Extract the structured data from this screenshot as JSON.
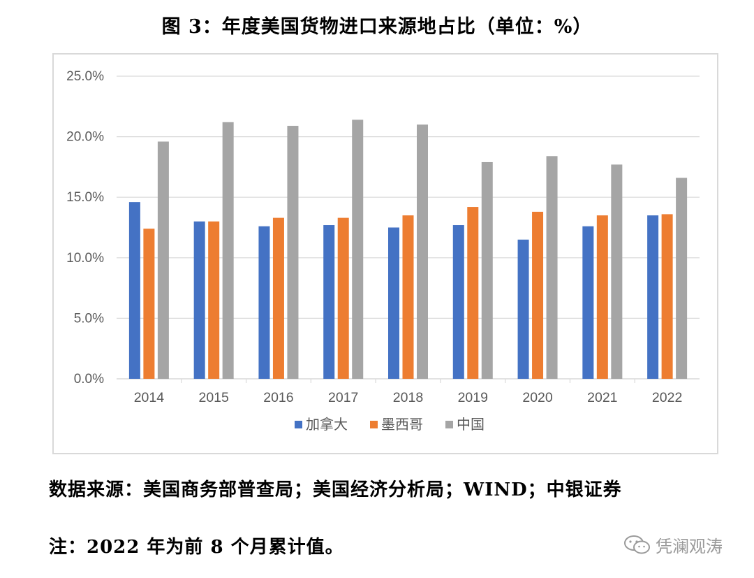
{
  "title": "图 3：年度美国货物进口来源地占比（单位：%）",
  "chart_data": {
    "type": "bar",
    "categories": [
      "2014",
      "2015",
      "2016",
      "2017",
      "2018",
      "2019",
      "2020",
      "2021",
      "2022"
    ],
    "series": [
      {
        "name": "加拿大",
        "color": "#4472c4",
        "values": [
          14.6,
          13.0,
          12.6,
          12.7,
          12.5,
          12.7,
          11.5,
          12.6,
          13.5
        ]
      },
      {
        "name": "墨西哥",
        "color": "#ed7d31",
        "values": [
          12.4,
          13.0,
          13.3,
          13.3,
          13.5,
          14.2,
          13.8,
          13.5,
          13.6
        ]
      },
      {
        "name": "中国",
        "color": "#a5a5a5",
        "values": [
          19.6,
          21.2,
          20.9,
          21.4,
          21.0,
          17.9,
          18.4,
          17.7,
          16.6
        ]
      }
    ],
    "ylim": [
      0,
      25
    ],
    "yticks": [
      "0.0%",
      "5.0%",
      "10.0%",
      "15.0%",
      "20.0%",
      "25.0%"
    ],
    "ytick_values": [
      0,
      5,
      10,
      15,
      20,
      25
    ],
    "grid": true,
    "legend": "bottom"
  },
  "source_text": "数据来源：美国商务部普查局；美国经济分析局；WIND；中银证券",
  "note_text": "注：2022 年为前 8 个月累计值。",
  "watermark": "凭澜观涛"
}
